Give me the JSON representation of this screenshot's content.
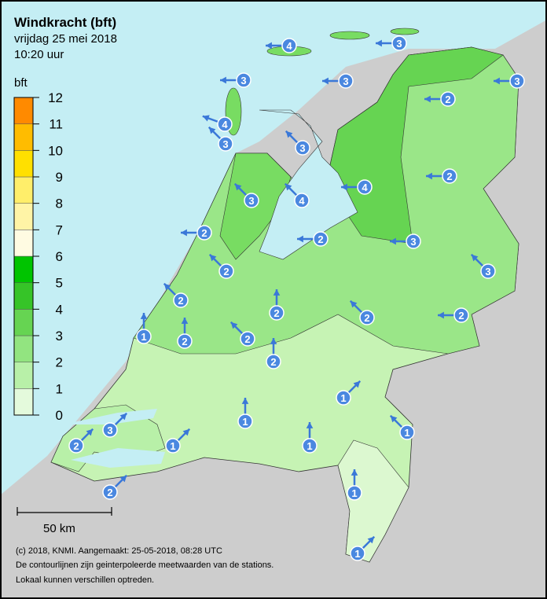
{
  "header": {
    "title": "Windkracht (bft)",
    "date": "vrijdag 25 mei 2018",
    "time": "10:20 uur"
  },
  "legend": {
    "unit": "bft",
    "labels": [
      0,
      1,
      2,
      3,
      4,
      5,
      6,
      7,
      8,
      9,
      10,
      11,
      12
    ],
    "colors": [
      "#e4fadc",
      "#b8f0a8",
      "#92e480",
      "#66d452",
      "#36c428",
      "#00c400",
      "#fffbe2",
      "#fff4a6",
      "#ffee6a",
      "#ffe000",
      "#ffbc00",
      "#ff8a00"
    ]
  },
  "scale": "50 km",
  "stations": [
    4,
    3,
    3,
    3,
    3,
    2,
    4,
    3,
    3,
    2,
    3,
    4,
    4,
    2,
    2,
    3,
    2,
    3,
    2,
    2,
    2,
    2,
    1,
    2,
    2,
    2,
    1,
    1,
    1,
    3,
    2,
    1,
    1,
    1,
    2,
    1
  ],
  "footer": [
    "(c) 2018, KNMI. Aangemaakt: 25-05-2018, 08:28 UTC",
    "De contourlijnen zijn geinterpoleerde meetwaarden van de stations.",
    "Lokaal kunnen verschillen optreden."
  ]
}
